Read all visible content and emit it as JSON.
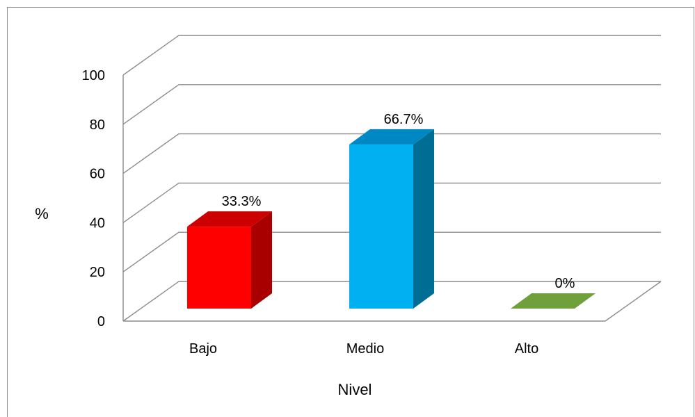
{
  "chart_data": {
    "type": "bar",
    "categories": [
      "Bajo",
      "Medio",
      "Alto"
    ],
    "values": [
      33.3,
      66.7,
      0
    ],
    "data_labels": [
      "33.3%",
      "66.7%",
      "0%"
    ],
    "colors": [
      "#ff0000",
      "#00b0f0",
      "#70a03c"
    ],
    "side_colors": [
      "#a80000",
      "#006e94",
      "#4f7a28"
    ],
    "top_colors": [
      "#cc0000",
      "#0088c4",
      "#5e8f30"
    ],
    "xlabel": "Nivel",
    "ylabel": "%",
    "ylim": [
      0,
      100
    ],
    "yticks": [
      0,
      20,
      40,
      60,
      80,
      100
    ],
    "grid": true,
    "style": "3d-column"
  }
}
